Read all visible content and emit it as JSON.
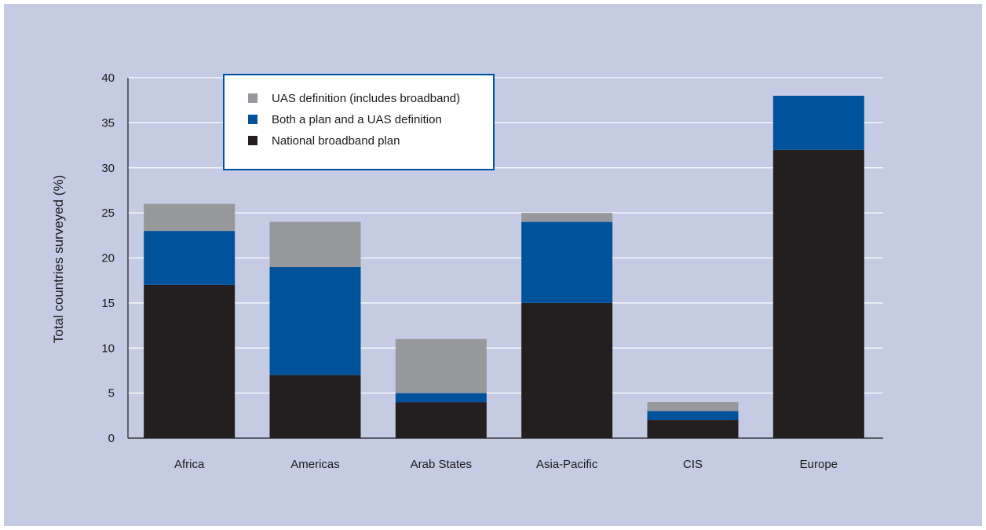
{
  "chart_data": {
    "type": "bar",
    "stacked": true,
    "categories": [
      "Africa",
      "Americas",
      "Arab States",
      "Asia-Pacific",
      "CIS",
      "Europe"
    ],
    "series": [
      {
        "name": "National broadband plan",
        "values": [
          17,
          7,
          4,
          15,
          2,
          32
        ],
        "color": "#231f20"
      },
      {
        "name": "Both a plan and a UAS definition",
        "values": [
          6,
          12,
          1,
          9,
          1,
          6
        ],
        "color": "#00529b"
      },
      {
        "name": "UAS definition (includes broadband)",
        "values": [
          3,
          5,
          6,
          1,
          1,
          0
        ],
        "color": "#97989c"
      }
    ],
    "title": "",
    "xlabel": "",
    "ylabel": "Total countries surveyed (%)",
    "ylim": [
      0,
      40
    ],
    "yticks": [
      0,
      5,
      10,
      15,
      20,
      25,
      30,
      35,
      40
    ],
    "grid": true,
    "legend": {
      "position": "top-left",
      "order": [
        "UAS definition (includes broadband)",
        "Both a plan and a UAS definition",
        "National broadband plan"
      ],
      "border_color": "#00529b"
    },
    "background_color": "#c4cbe3",
    "gridline_color": "#ffffff"
  }
}
